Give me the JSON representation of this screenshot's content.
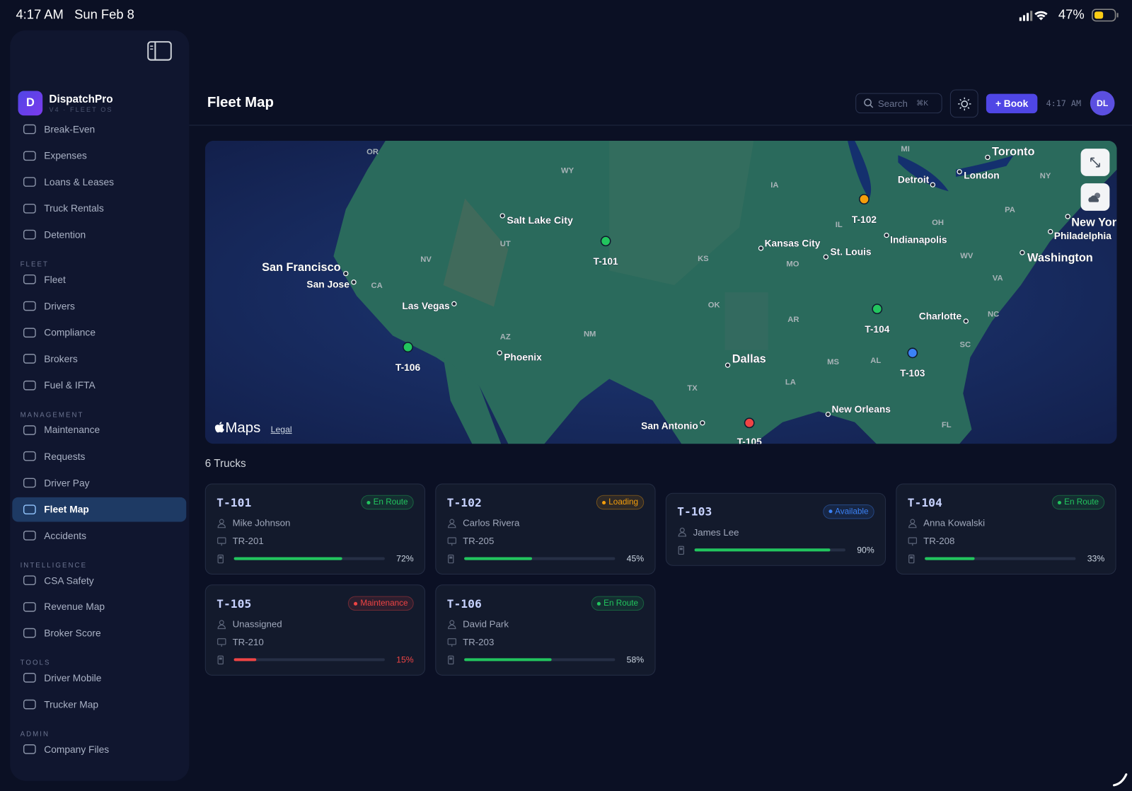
{
  "status_bar": {
    "time": "4:17 AM",
    "date": "Sun Feb 8",
    "battery": "47%"
  },
  "sidebar": {
    "logo": "D",
    "brand": "DispatchPro",
    "brand_sub": "V4 · FLEET OS",
    "groups": [
      {
        "items": [
          {
            "label": "Break-Even"
          },
          {
            "label": "Expenses"
          },
          {
            "label": "Loans & Leases"
          },
          {
            "label": "Truck Rentals"
          },
          {
            "label": "Detention"
          }
        ]
      },
      {
        "label": "FLEET",
        "items": [
          {
            "label": "Fleet"
          },
          {
            "label": "Drivers"
          },
          {
            "label": "Compliance"
          },
          {
            "label": "Brokers"
          },
          {
            "label": "Fuel & IFTA"
          }
        ]
      },
      {
        "label": "MANAGEMENT",
        "items": [
          {
            "label": "Maintenance"
          },
          {
            "label": "Requests"
          },
          {
            "label": "Driver Pay"
          },
          {
            "label": "Fleet Map",
            "active": true
          },
          {
            "label": "Accidents"
          }
        ]
      },
      {
        "label": "INTELLIGENCE",
        "items": [
          {
            "label": "CSA Safety"
          },
          {
            "label": "Revenue Map"
          },
          {
            "label": "Broker Score"
          }
        ]
      },
      {
        "label": "TOOLS",
        "items": [
          {
            "label": "Driver Mobile"
          },
          {
            "label": "Trucker Map"
          }
        ]
      },
      {
        "label": "ADMIN",
        "items": [
          {
            "label": "Company Files"
          }
        ]
      }
    ]
  },
  "header": {
    "title": "Fleet Map",
    "search": "Search",
    "shortcut": "⌘K",
    "book": "+ Book",
    "time": "4:17 AM",
    "avatar": "DL"
  },
  "map": {
    "states": [
      "OR",
      "WY",
      "IA",
      "MI",
      "NY",
      "PA",
      "OH",
      "IL",
      "UT",
      "NV",
      "CA",
      "KS",
      "MO",
      "WV",
      "VA",
      "OK",
      "AR",
      "NC",
      "AZ",
      "NM",
      "SC",
      "MS",
      "AL",
      "TX",
      "LA",
      "FL"
    ],
    "cities": [
      "Toronto",
      "London",
      "Detroit",
      "Salt Lake City",
      "New York",
      "Philadelphia",
      "Washington",
      "Kansas City",
      "St. Louis",
      "Indianapolis",
      "San Francisco",
      "San Jose",
      "Las Vegas",
      "Phoenix",
      "Charlotte",
      "Dallas",
      "New Orleans",
      "San Antonio"
    ],
    "markers": [
      {
        "label": "T-101",
        "color": "#22c55e"
      },
      {
        "label": "T-102",
        "color": "#f59e0b"
      },
      {
        "label": "T-104",
        "color": "#22c55e"
      },
      {
        "label": "T-103",
        "color": "#3b82f6"
      },
      {
        "label": "T-106",
        "color": "#22c55e"
      },
      {
        "label": "T-105",
        "color": "#ef4444"
      }
    ],
    "attribution": "Maps",
    "legal": "Legal"
  },
  "trucks": {
    "count": "6 Trucks",
    "cards": [
      {
        "id": "T-101",
        "status": "En Route",
        "color": "#22c55e",
        "driver": "Mike Johnson",
        "unit": "TR-201",
        "fuel": {
          "value": 72,
          "label": "72%"
        }
      },
      {
        "id": "T-102",
        "status": "Loading",
        "color": "#f59e0b",
        "driver": "Carlos Rivera",
        "unit": "TR-205",
        "fuel": {
          "value": 45,
          "label": "45%"
        }
      },
      {
        "id": "T-103",
        "status": "Available",
        "color": "#3b82f6",
        "driver": "James Lee",
        "fuel": {
          "value": 90,
          "label": "90%"
        }
      },
      {
        "id": "T-104",
        "status": "En Route",
        "color": "#22c55e",
        "driver": "Anna Kowalski",
        "unit": "TR-208",
        "fuel": {
          "value": 33,
          "label": "33%"
        }
      },
      {
        "id": "T-105",
        "status": "Maintenance",
        "color": "#ef4444",
        "driver": "Unassigned",
        "unit": "TR-210",
        "fuel": {
          "value": 15,
          "label": "15%"
        }
      },
      {
        "id": "T-106",
        "status": "En Route",
        "color": "#22c55e",
        "driver": "David Park",
        "unit": "TR-203",
        "fuel": {
          "value": 58,
          "label": "58%"
        }
      }
    ]
  }
}
